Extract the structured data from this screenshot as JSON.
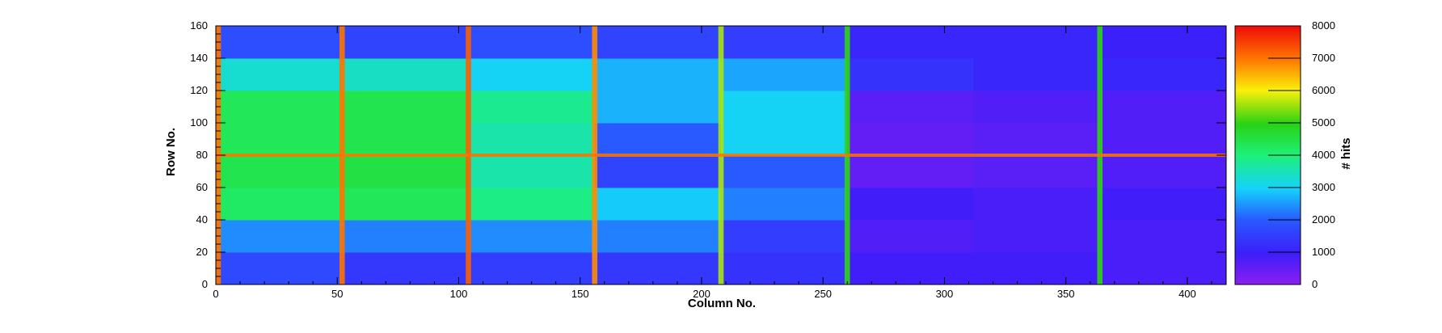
{
  "chart_data": {
    "type": "heatmap",
    "title": "",
    "xlabel": "Column No.",
    "ylabel": "Row No.",
    "zlabel": "# hits",
    "xlim": [
      0,
      416
    ],
    "ylim": [
      0,
      160
    ],
    "zlim": [
      0,
      8000
    ],
    "x_ticks": [
      0,
      50,
      100,
      150,
      200,
      250,
      300,
      350,
      400
    ],
    "y_ticks": [
      0,
      20,
      40,
      60,
      80,
      100,
      120,
      140,
      160
    ],
    "z_ticks": [
      0,
      1000,
      2000,
      3000,
      4000,
      5000,
      6000,
      7000,
      8000
    ],
    "colormap": "rainbow (violet-blue-cyan-green-yellow-red)",
    "colorbar_position": "right",
    "sample_grid": {
      "x_bins": [
        0,
        52,
        104,
        156,
        208,
        260,
        312,
        364,
        416
      ],
      "y_bins": [
        0,
        20,
        40,
        60,
        80,
        100,
        120,
        140,
        160
      ],
      "z_description": "typical hit counts per region (estimated)",
      "z": [
        [
          1700,
          1400,
          1500,
          1400,
          1300,
          900,
          900,
          800
        ],
        [
          2400,
          2300,
          2400,
          2300,
          1500,
          700,
          800,
          800
        ],
        [
          4200,
          4300,
          3900,
          2900,
          2300,
          900,
          800,
          900
        ],
        [
          4400,
          4500,
          3600,
          1600,
          2000,
          500,
          600,
          700
        ],
        [
          4300,
          4400,
          3600,
          2000,
          3000,
          500,
          600,
          700
        ],
        [
          4300,
          4400,
          3800,
          2700,
          3000,
          600,
          700,
          700
        ],
        [
          3300,
          3400,
          3000,
          2700,
          2600,
          1300,
          1100,
          1100
        ],
        [
          1800,
          1600,
          1800,
          1600,
          1500,
          1100,
          1100,
          1000
        ]
      ],
      "hot_columns": [
        {
          "column": 1,
          "hits": 7000
        },
        {
          "column": 52,
          "hits": 7000
        },
        {
          "column": 104,
          "hits": 7200
        },
        {
          "column": 156,
          "hits": 6800
        },
        {
          "column": 208,
          "hits": 5600
        },
        {
          "column": 260,
          "hits": 5000
        },
        {
          "column": 364,
          "hits": 5000
        }
      ],
      "hot_rows": [
        {
          "row": 80,
          "hits": 7000
        }
      ]
    }
  }
}
